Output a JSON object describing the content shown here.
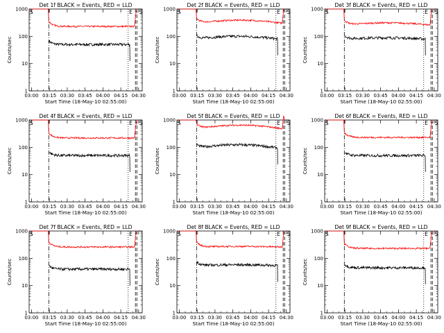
{
  "colors": {
    "events": "#000000",
    "lld": "#ff0000",
    "axis": "#000000"
  },
  "chart_data": [
    {
      "type": "line",
      "title": "Det 1f BLACK = Events, RED = LLD",
      "xlabel": "Start Time (18-May-10 02:55:00)",
      "ylabel": "Counts/sec",
      "ylog": true,
      "yticks": [
        "1",
        "10",
        "100",
        "1000"
      ],
      "xticks": [
        "03:00",
        "03:15",
        "03:30",
        "03:45",
        "04:00",
        "04:15",
        "04:30"
      ],
      "markers": [
        "S",
        "E",
        "S"
      ],
      "series": [
        {
          "role": "events",
          "level": 50,
          "peak": 1.0
        },
        {
          "role": "lld",
          "level": 230,
          "peak": 1.0
        }
      ]
    },
    {
      "type": "line",
      "title": "Det 2f BLACK = Events, RED = LLD",
      "xlabel": "Start Time (18-May-10 02:55:00)",
      "ylabel": "Counts/sec",
      "ylog": true,
      "yticks": [
        "1",
        "10",
        "100",
        "1000"
      ],
      "xticks": [
        "03:00",
        "03:15",
        "03:30",
        "03:45",
        "04:00",
        "04:15",
        "04:30"
      ],
      "markers": [
        "S",
        "E",
        "S"
      ],
      "series": [
        {
          "role": "events",
          "level": 80,
          "peak": 1.25
        },
        {
          "role": "lld",
          "level": 300,
          "peak": 1.3
        }
      ]
    },
    {
      "type": "line",
      "title": "Det 3f BLACK = Events, RED = LLD",
      "xlabel": "Start Time (18-May-10 02:55:00)",
      "ylabel": "Counts/sec",
      "ylog": true,
      "yticks": [
        "1",
        "10",
        "100",
        "1000"
      ],
      "xticks": [
        "03:00",
        "03:15",
        "03:30",
        "03:45",
        "04:00",
        "04:15",
        "04:30"
      ],
      "markers": [
        "S",
        "E",
        "S"
      ],
      "series": [
        {
          "role": "events",
          "level": 80,
          "peak": 1.1
        },
        {
          "role": "lld",
          "level": 260,
          "peak": 1.2
        }
      ]
    },
    {
      "type": "line",
      "title": "Det 4f BLACK = Events, RED = LLD",
      "xlabel": "Start Time (18-May-10 02:55:00)",
      "ylabel": "Counts/sec",
      "ylog": true,
      "yticks": [
        "1",
        "10",
        "100",
        "1000"
      ],
      "xticks": [
        "03:00",
        "03:15",
        "03:30",
        "03:45",
        "04:00",
        "04:15",
        "04:30"
      ],
      "markers": [
        "S",
        "E",
        "S"
      ],
      "series": [
        {
          "role": "events",
          "level": 50,
          "peak": 1.0
        },
        {
          "role": "lld",
          "level": 220,
          "peak": 1.0
        }
      ]
    },
    {
      "type": "line",
      "title": "Det 5f BLACK = Events, RED = LLD",
      "xlabel": "Start Time (18-May-10 02:55:00)",
      "ylabel": "Counts/sec",
      "ylog": true,
      "yticks": [
        "1",
        "10",
        "100",
        "1000"
      ],
      "xticks": [
        "03:00",
        "03:15",
        "03:30",
        "03:45",
        "04:00",
        "04:15",
        "04:30"
      ],
      "markers": [
        "S",
        "E",
        "S"
      ],
      "series": [
        {
          "role": "events",
          "level": 95,
          "peak": 1.3
        },
        {
          "role": "lld",
          "level": 480,
          "peak": 1.35
        }
      ]
    },
    {
      "type": "line",
      "title": "Det 6f BLACK = Events, RED = LLD",
      "xlabel": "Start Time (18-May-10 02:55:00)",
      "ylabel": "Counts/sec",
      "ylog": true,
      "yticks": [
        "1",
        "10",
        "100",
        "1000"
      ],
      "xticks": [
        "03:00",
        "03:15",
        "03:30",
        "03:45",
        "04:00",
        "04:15",
        "04:30"
      ],
      "markers": [
        "S",
        "E",
        "S"
      ],
      "series": [
        {
          "role": "events",
          "level": 50,
          "peak": 1.0
        },
        {
          "role": "lld",
          "level": 230,
          "peak": 1.0
        }
      ]
    },
    {
      "type": "line",
      "title": "Det 7f BLACK = Events, RED = LLD",
      "xlabel": "Start Time (18-May-10 02:55:00)",
      "ylabel": "Counts/sec",
      "ylog": true,
      "yticks": [
        "1",
        "10",
        "100",
        "1000"
      ],
      "xticks": [
        "03:00",
        "03:15",
        "03:30",
        "03:45",
        "04:00",
        "04:15",
        "04:30"
      ],
      "markers": [
        "S",
        "E"
      ],
      "series": [
        {
          "role": "events",
          "level": 40,
          "peak": 1.0
        },
        {
          "role": "lld",
          "level": 260,
          "peak": 1.0
        }
      ]
    },
    {
      "type": "line",
      "title": "Det 8f BLACK = Events, RED = LLD",
      "xlabel": "Start Time (18-May-10 02:55:00)",
      "ylabel": "Counts/sec",
      "ylog": true,
      "yticks": [
        "1",
        "10",
        "100",
        "1000"
      ],
      "xticks": [
        "03:00",
        "03:15",
        "03:30",
        "03:45",
        "04:00",
        "04:15",
        "04:30"
      ],
      "markers": [
        "S",
        "E",
        "S"
      ],
      "series": [
        {
          "role": "events",
          "level": 55,
          "peak": 1.05
        },
        {
          "role": "lld",
          "level": 260,
          "peak": 1.05
        }
      ]
    },
    {
      "type": "line",
      "title": "Det 9f BLACK = Events, RED = LLD",
      "xlabel": "Start Time (18-May-10 02:55:00)",
      "ylabel": "Counts/sec",
      "ylog": true,
      "yticks": [
        "1",
        "10",
        "100",
        "1000"
      ],
      "xticks": [
        "03:00",
        "03:15",
        "03:30",
        "03:45",
        "04:00",
        "04:15",
        "04:30"
      ],
      "markers": [
        "S",
        "E",
        "S"
      ],
      "series": [
        {
          "role": "events",
          "level": 45,
          "peak": 1.0
        },
        {
          "role": "lld",
          "level": 230,
          "peak": 1.0
        }
      ]
    }
  ]
}
